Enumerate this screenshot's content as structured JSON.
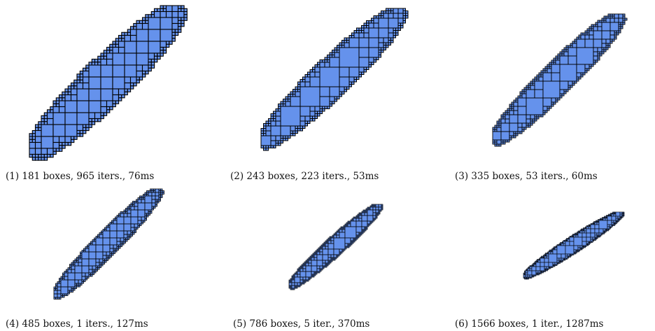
{
  "colors": {
    "box_fill": "#6592ec",
    "box_stroke": "#000000",
    "background": "#ffffff"
  },
  "panels": [
    {
      "caption": "(1) 181 boxes, 965 iters., 76ms",
      "boxes": 181
    },
    {
      "caption": "(2) 243 boxes, 223 iters., 53ms",
      "boxes": 243
    },
    {
      "caption": "(3) 335 boxes, 53 iters., 60ms",
      "boxes": 335
    },
    {
      "caption": "(4) 485 boxes, 1 iters., 127ms",
      "boxes": 485
    },
    {
      "caption": "(5) 786 boxes, 5 iter., 370ms",
      "boxes": 786
    },
    {
      "caption": "(6) 1566 boxes, 1 iter., 1287ms",
      "boxes": 1566
    }
  ]
}
